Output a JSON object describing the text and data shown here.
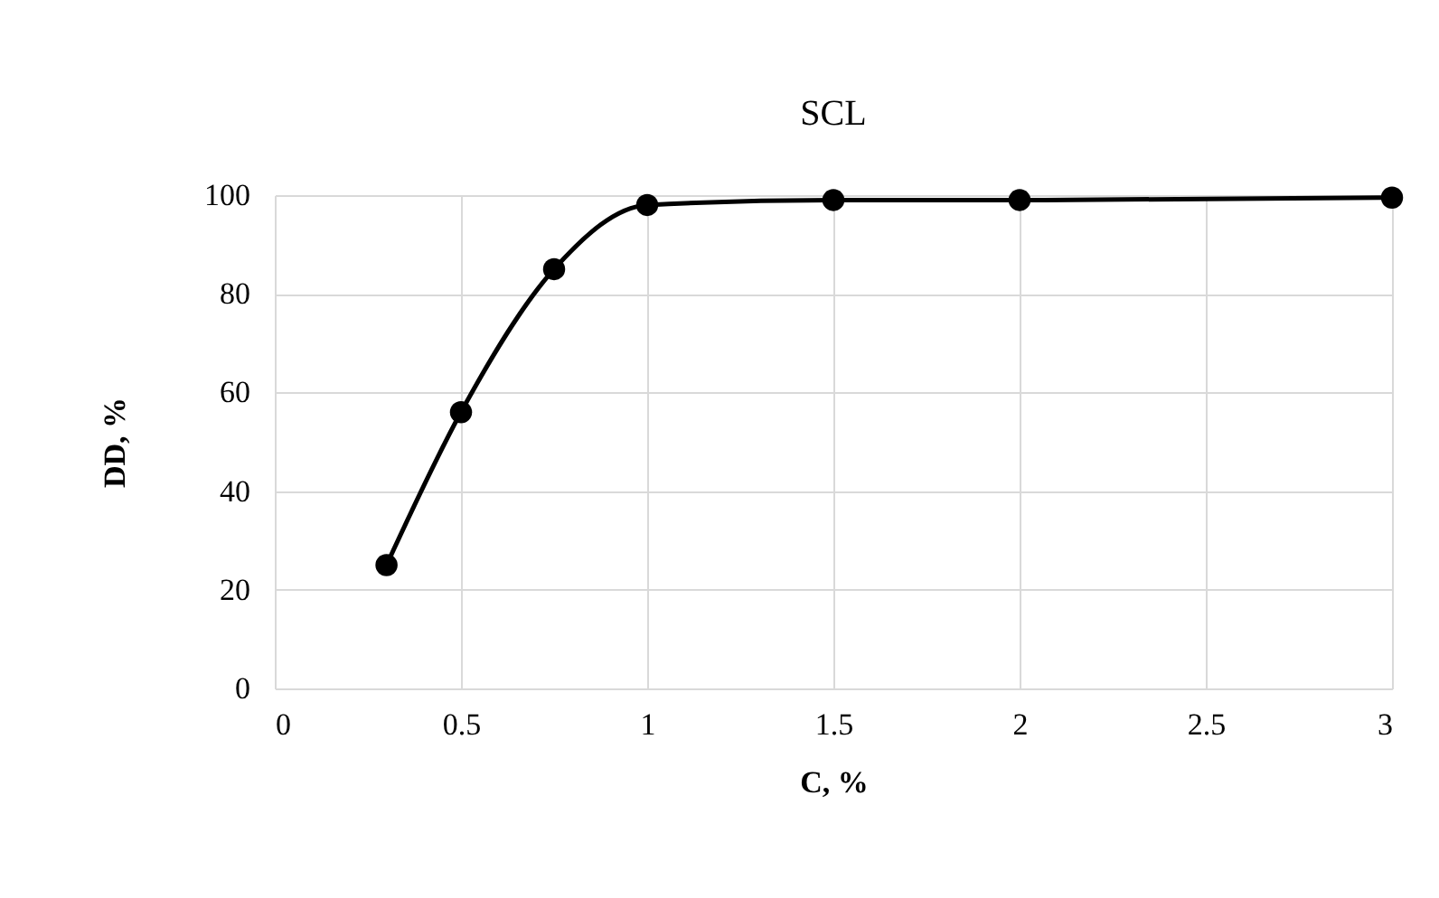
{
  "chart_data": {
    "type": "line",
    "title": "SCL",
    "xlabel": "C, %",
    "ylabel": "DD, %",
    "x": [
      0.3,
      0.5,
      0.75,
      1,
      1.5,
      2,
      3
    ],
    "series": [
      {
        "color": "#000000",
        "values": [
          25,
          56,
          85,
          98,
          99,
          99,
          99.5
        ]
      }
    ],
    "xlim": [
      0,
      3
    ],
    "xticks": [
      0,
      0.5,
      1,
      1.5,
      2,
      2.5,
      3
    ],
    "ylim": [
      0,
      100
    ],
    "yticks": [
      0,
      20,
      40,
      60,
      80,
      100
    ],
    "grid": true,
    "marker": "circle",
    "line_style": "solid"
  }
}
